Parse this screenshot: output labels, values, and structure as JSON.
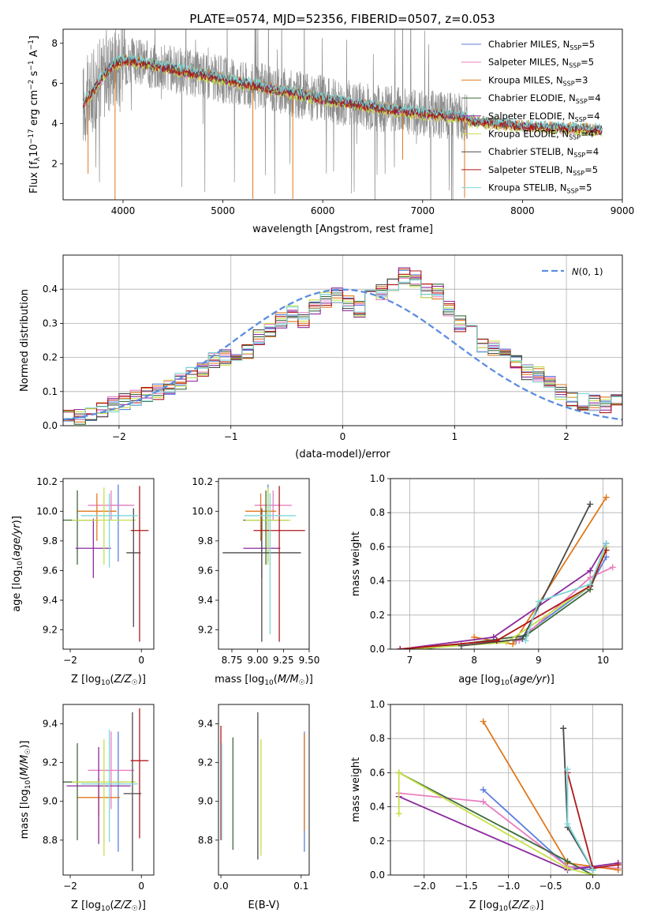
{
  "title": "PLATE=0574, MJD=52356, FIBERID=0507, z=0.053",
  "colors": {
    "chabrier_miles": "#5b7fdc",
    "salpeter_miles": "#e97fc0",
    "kroupa_miles": "#e0781e",
    "chabrier_elodie": "#3d6b3d",
    "salpeter_elodie": "#8b2a9e",
    "kroupa_elodie": "#c6e04a",
    "chabrier_stelib": "#4a4a4a",
    "salpeter_stelib": "#b01818",
    "kroupa_stelib": "#7fd6d6",
    "data": "#8c8c8c",
    "normal": "#5b8ee0"
  },
  "legend": [
    {
      "prefix": "Chabrier MILES, N",
      "n": "5",
      "key": "chabrier_miles"
    },
    {
      "prefix": "Salpeter MILES, N",
      "n": "5",
      "key": "salpeter_miles"
    },
    {
      "prefix": "Kroupa MILES, N",
      "n": "3",
      "key": "kroupa_miles"
    },
    {
      "prefix": "Chabrier ELODIE, N",
      "n": "4",
      "key": "chabrier_elodie"
    },
    {
      "prefix": "Salpeter ELODIE, N",
      "n": "4",
      "key": "salpeter_elodie"
    },
    {
      "prefix": "Kroupa ELODIE, N",
      "n": "4",
      "key": "kroupa_elodie"
    },
    {
      "prefix": "Chabrier STELIB, N",
      "n": "4",
      "key": "chabrier_stelib"
    },
    {
      "prefix": "Salpeter STELIB, N",
      "n": "5",
      "key": "salpeter_stelib"
    },
    {
      "prefix": "Kroupa STELIB, N",
      "n": "5",
      "key": "kroupa_stelib"
    }
  ],
  "legend_sub": "SSP",
  "normal_label": "N(0,1)",
  "chart_data": [
    {
      "type": "line",
      "name": "spectrum",
      "xlabel": "wavelength [Angstrom, rest frame]",
      "ylabel": "Flux [f_λ 10^-17 erg cm^-2 s^-1 A^-1]",
      "xlim": [
        3400,
        9000
      ],
      "ylim": [
        0.2,
        8.7
      ],
      "xticks": [
        4000,
        5000,
        6000,
        7000,
        8000,
        9000
      ],
      "yticks": [
        2,
        4,
        6,
        8
      ],
      "grid": false,
      "legend_position": "right",
      "data_range": [
        3600,
        7450
      ],
      "model_continuum": {
        "x": [
          3600,
          3700,
          3800,
          3900,
          4000,
          4100,
          4200,
          4400,
          4600,
          4800,
          5000,
          5200,
          5400,
          5600,
          5800,
          6000,
          6200,
          6400,
          6600,
          6800,
          7000,
          7200,
          7400,
          7600,
          7800,
          8000,
          8200,
          8400,
          8600,
          8800
        ],
        "y": [
          5.0,
          5.6,
          6.4,
          6.9,
          7.1,
          7.1,
          7.0,
          6.8,
          6.6,
          6.4,
          6.2,
          6.0,
          5.8,
          5.6,
          5.4,
          5.2,
          5.05,
          4.9,
          4.75,
          4.6,
          4.5,
          4.4,
          4.3,
          4.2,
          4.1,
          4.0,
          3.95,
          3.9,
          3.85,
          3.8
        ]
      }
    },
    {
      "type": "line",
      "name": "residual-distribution",
      "xlabel": "(data-model)/error",
      "ylabel": "Normed distribution",
      "xlim": [
        -2.5,
        2.5
      ],
      "ylim": [
        0,
        0.5
      ],
      "xticks": [
        -2,
        -1,
        0,
        1,
        2
      ],
      "yticks": [
        0.0,
        0.1,
        0.2,
        0.3,
        0.4
      ],
      "grid": true,
      "legend_position": "top-right",
      "bin_width": 0.1,
      "bin_start": -2.5,
      "histogram_mean": [
        0.03,
        0.025,
        0.03,
        0.05,
        0.06,
        0.07,
        0.08,
        0.09,
        0.1,
        0.11,
        0.13,
        0.15,
        0.17,
        0.19,
        0.2,
        0.21,
        0.22,
        0.26,
        0.28,
        0.31,
        0.33,
        0.31,
        0.35,
        0.37,
        0.38,
        0.36,
        0.34,
        0.38,
        0.39,
        0.42,
        0.44,
        0.43,
        0.4,
        0.39,
        0.34,
        0.3,
        0.27,
        0.24,
        0.23,
        0.21,
        0.19,
        0.16,
        0.15,
        0.12,
        0.1,
        0.08,
        0.07,
        0.065,
        0.06,
        0.07,
        0.08,
        0.07,
        0.04,
        0.03,
        0.03,
        0.025,
        0.02,
        0.02,
        0.03,
        0.03
      ]
    },
    {
      "type": "scatter",
      "name": "age-vs-Z",
      "xlabel": "Z [log10(Z/Z☉)]",
      "ylabel": "age [log10(age/yr)]",
      "xlim": [
        -2.2,
        0.35
      ],
      "ylim": [
        9.07,
        10.22
      ],
      "xticks": [
        -2,
        0
      ],
      "yticks": [
        9.2,
        9.4,
        9.6,
        9.8,
        10.0,
        10.2
      ],
      "points": [
        {
          "key": "chabrier_miles",
          "x": -0.65,
          "xerr": 0.25,
          "y": 10.04,
          "yerr": [
            0.38,
            0.14
          ]
        },
        {
          "key": "salpeter_miles",
          "x": -0.85,
          "xerr": 0.65,
          "y": 10.04,
          "yerr": [
            0.1,
            0.1
          ]
        },
        {
          "key": "kroupa_miles",
          "x": -1.25,
          "xerr": 0.55,
          "y": 10.0,
          "yerr": [
            0.2,
            0.12
          ]
        },
        {
          "key": "chabrier_elodie",
          "x": -1.8,
          "xerr": 0.6,
          "y": 9.94,
          "yerr": [
            0.3,
            0.2
          ]
        },
        {
          "key": "salpeter_elodie",
          "x": -1.35,
          "xerr": 0.5,
          "y": 9.75,
          "yerr": [
            0.2,
            0.2
          ]
        },
        {
          "key": "kroupa_elodie",
          "x": -1.05,
          "xerr": 0.9,
          "y": 9.94,
          "yerr": [
            0.3,
            0.22
          ]
        },
        {
          "key": "chabrier_stelib",
          "x": -0.22,
          "xerr": 0.2,
          "y": 9.72,
          "yerr": [
            0.5,
            0.3
          ]
        },
        {
          "key": "salpeter_stelib",
          "x": -0.05,
          "xerr": 0.25,
          "y": 9.87,
          "yerr": [
            0.75,
            0.3
          ]
        },
        {
          "key": "kroupa_stelib",
          "x": -0.9,
          "xerr": 0.8,
          "y": 9.97,
          "yerr": [
            0.35,
            0.15
          ]
        }
      ]
    },
    {
      "type": "scatter",
      "name": "age-vs-mass",
      "xlabel": "mass [log10(M/M☉)]",
      "ylabel": "",
      "xlim": [
        8.62,
        9.5
      ],
      "ylim": [
        9.07,
        10.22
      ],
      "xticks": [
        8.75,
        9.0,
        9.25,
        9.5
      ],
      "yticks": [
        9.2,
        9.4,
        9.6,
        9.8,
        10.0,
        10.2
      ],
      "points": [
        {
          "key": "chabrier_miles",
          "x": 9.1,
          "xerr": 0.1,
          "y": 10.04,
          "yerr": [
            0.38,
            0.14
          ]
        },
        {
          "key": "salpeter_miles",
          "x": 9.15,
          "xerr": 0.18,
          "y": 10.04,
          "yerr": [
            0.1,
            0.1
          ]
        },
        {
          "key": "kroupa_miles",
          "x": 9.03,
          "xerr": 0.15,
          "y": 10.0,
          "yerr": [
            0.2,
            0.12
          ]
        },
        {
          "key": "chabrier_elodie",
          "x": 9.08,
          "xerr": 0.22,
          "y": 9.94,
          "yerr": [
            0.3,
            0.2
          ]
        },
        {
          "key": "salpeter_elodie",
          "x": 9.04,
          "xerr": 0.18,
          "y": 9.75,
          "yerr": [
            0.2,
            0.2
          ]
        },
        {
          "key": "kroupa_elodie",
          "x": 9.1,
          "xerr": 0.22,
          "y": 9.94,
          "yerr": [
            0.3,
            0.22
          ]
        },
        {
          "key": "chabrier_stelib",
          "x": 9.04,
          "xerr": 0.38,
          "y": 9.72,
          "yerr": [
            0.6,
            0.3
          ]
        },
        {
          "key": "salpeter_stelib",
          "x": 9.21,
          "xerr": 0.25,
          "y": 9.87,
          "yerr": [
            0.75,
            0.3
          ]
        },
        {
          "key": "kroupa_stelib",
          "x": 9.12,
          "xerr": 0.25,
          "y": 9.97,
          "yerr": [
            0.8,
            0.15
          ]
        }
      ]
    },
    {
      "type": "line",
      "name": "mass-weight-vs-age",
      "xlabel": "age [log10(age/yr)]",
      "ylabel": "mass weight",
      "xlim": [
        6.7,
        10.3
      ],
      "ylim": [
        0,
        1.0
      ],
      "xticks": [
        7,
        8,
        9,
        10
      ],
      "yticks": [
        0.0,
        0.2,
        0.4,
        0.6,
        0.8,
        1.0
      ],
      "grid": true,
      "series": [
        {
          "key": "chabrier_miles",
          "x": [
            8.65,
            9.8,
            10.05
          ],
          "y": [
            0.05,
            0.37,
            0.54
          ]
        },
        {
          "key": "salpeter_miles",
          "x": [
            8.7,
            9.8,
            10.15
          ],
          "y": [
            0.05,
            0.42,
            0.48
          ]
        },
        {
          "key": "kroupa_miles",
          "x": [
            8.0,
            8.6,
            10.05
          ],
          "y": [
            0.07,
            0.03,
            0.89
          ]
        },
        {
          "key": "chabrier_elodie",
          "x": [
            7.2,
            8.8,
            9.8,
            10.05
          ],
          "y": [
            0.0,
            0.08,
            0.35,
            0.6
          ]
        },
        {
          "key": "salpeter_elodie",
          "x": [
            6.85,
            8.3,
            9.8,
            10.05
          ],
          "y": [
            0.0,
            0.07,
            0.46,
            0.62
          ]
        },
        {
          "key": "kroupa_elodie",
          "x": [
            7.0,
            8.5,
            9.8,
            10.05
          ],
          "y": [
            0.0,
            0.04,
            0.37,
            0.6
          ]
        },
        {
          "key": "chabrier_stelib",
          "x": [
            7.8,
            8.75,
            9.8
          ],
          "y": [
            0.02,
            0.06,
            0.85
          ]
        },
        {
          "key": "salpeter_stelib",
          "x": [
            6.85,
            8.35,
            9.8,
            10.05
          ],
          "y": [
            0.0,
            0.05,
            0.37,
            0.58
          ]
        },
        {
          "key": "kroupa_stelib",
          "x": [
            8.8,
            9.0,
            9.8,
            10.05
          ],
          "y": [
            0.05,
            0.28,
            0.38,
            0.62
          ]
        }
      ]
    },
    {
      "type": "scatter",
      "name": "mass-vs-Z",
      "xlabel": "Z [log10(Z/Z☉)]",
      "ylabel": "mass [log10(M/M☉)]",
      "xlim": [
        -2.2,
        0.35
      ],
      "ylim": [
        8.62,
        9.5
      ],
      "xticks": [
        -2,
        0
      ],
      "yticks": [
        8.8,
        9.0,
        9.2,
        9.4
      ],
      "points": [
        {
          "key": "chabrier_miles",
          "x": -0.65,
          "xerr": 0.2,
          "y": 9.1,
          "yerr": [
            0.36,
            0.26
          ]
        },
        {
          "key": "salpeter_miles",
          "x": -0.85,
          "xerr": 0.65,
          "y": 9.16,
          "yerr": [
            0.2,
            0.2
          ]
        },
        {
          "key": "kroupa_miles",
          "x": -1.2,
          "xerr": 0.6,
          "y": 9.02,
          "yerr": [
            0.1,
            0.1
          ]
        },
        {
          "key": "chabrier_elodie",
          "x": -1.8,
          "xerr": 0.6,
          "y": 9.1,
          "yerr": [
            0.3,
            0.2
          ]
        },
        {
          "key": "salpeter_elodie",
          "x": -1.2,
          "xerr": 0.9,
          "y": 9.08,
          "yerr": [
            0.3,
            0.2
          ]
        },
        {
          "key": "kroupa_elodie",
          "x": -1.05,
          "xerr": 0.9,
          "y": 9.1,
          "yerr": [
            0.38,
            0.22
          ]
        },
        {
          "key": "chabrier_stelib",
          "x": -0.25,
          "xerr": 0.25,
          "y": 9.04,
          "yerr": [
            0.4,
            0.42
          ]
        },
        {
          "key": "salpeter_stelib",
          "x": -0.05,
          "xerr": 0.25,
          "y": 9.21,
          "yerr": [
            0.4,
            0.27
          ]
        },
        {
          "key": "kroupa_stelib",
          "x": -0.9,
          "xerr": 0.8,
          "y": 9.09,
          "yerr": [
            0.3,
            0.28
          ]
        }
      ]
    },
    {
      "type": "scatter",
      "name": "mass-vs-EBV",
      "xlabel": "E(B-V)",
      "ylabel": "",
      "xlim": [
        -0.003,
        0.11
      ],
      "ylim": [
        8.62,
        9.5
      ],
      "xticks": [
        0.0,
        0.1
      ],
      "yticks": [
        8.8,
        9.0,
        9.2,
        9.4
      ],
      "points": [
        {
          "key": "chabrier_miles",
          "x": 0.104,
          "y": 9.1,
          "yerr": [
            0.36,
            0.26
          ]
        },
        {
          "key": "kroupa_miles",
          "x": 0.104,
          "y": 9.1,
          "yerr": [
            0.25,
            0.25
          ]
        },
        {
          "key": "chabrier_elodie",
          "x": 0.015,
          "y": 9.1,
          "yerr": [
            0.35,
            0.23
          ]
        },
        {
          "key": "kroupa_elodie",
          "x": 0.05,
          "y": 9.1,
          "yerr": [
            0.38,
            0.22
          ]
        },
        {
          "key": "chabrier_stelib",
          "x": 0.046,
          "y": 9.1,
          "yerr": [
            0.4,
            0.36
          ]
        },
        {
          "key": "salpeter_stelib",
          "x": 0.0,
          "y": 9.1,
          "yerr": [
            0.3,
            0.29
          ]
        },
        {
          "key": "kroupa_stelib",
          "x": 0.001,
          "y": 9.1,
          "yerr": [
            0.3,
            0.2
          ]
        }
      ]
    },
    {
      "type": "line",
      "name": "mass-weight-vs-Z",
      "xlabel": "Z [log10(Z/Z☉)]",
      "ylabel": "mass weight",
      "xlim": [
        -2.4,
        0.35
      ],
      "ylim": [
        0,
        1.0
      ],
      "xticks": [
        -2.0,
        -1.5,
        -1.0,
        -0.5,
        0.0
      ],
      "yticks": [
        0.0,
        0.2,
        0.4,
        0.6,
        0.8,
        1.0
      ],
      "grid": true,
      "series": [
        {
          "key": "chabrier_miles",
          "x": [
            -1.3,
            -0.3,
            0.0
          ],
          "y": [
            0.5,
            0.05,
            0.03
          ]
        },
        {
          "key": "salpeter_miles",
          "x": [
            -2.3,
            -1.3,
            -0.3,
            0.3
          ],
          "y": [
            0.48,
            0.43,
            0.05,
            0.04
          ]
        },
        {
          "key": "kroupa_miles",
          "x": [
            -1.3,
            -0.3,
            0.3
          ],
          "y": [
            0.9,
            0.07,
            0.03
          ]
        },
        {
          "key": "chabrier_elodie",
          "x": [
            -2.3,
            -0.3,
            0.0
          ],
          "y": [
            0.6,
            0.08,
            0.0
          ]
        },
        {
          "key": "salpeter_elodie",
          "x": [
            -2.3,
            -0.3,
            0.3
          ],
          "y": [
            0.46,
            0.03,
            0.07
          ]
        },
        {
          "key": "kroupa_elodie",
          "x": [
            -2.3,
            -2.3,
            -0.3,
            0.0
          ],
          "y": [
            0.36,
            0.6,
            0.04,
            0.0
          ]
        },
        {
          "key": "chabrier_stelib",
          "x": [
            -0.35,
            -0.3,
            0.0
          ],
          "y": [
            0.86,
            0.28,
            0.03
          ]
        },
        {
          "key": "salpeter_stelib",
          "x": [
            -0.3,
            0.0,
            0.3
          ],
          "y": [
            0.6,
            0.04,
            0.06
          ]
        },
        {
          "key": "kroupa_stelib",
          "x": [
            -0.3,
            -0.3,
            0.0
          ],
          "y": [
            0.62,
            0.3,
            0.03
          ]
        }
      ]
    }
  ]
}
